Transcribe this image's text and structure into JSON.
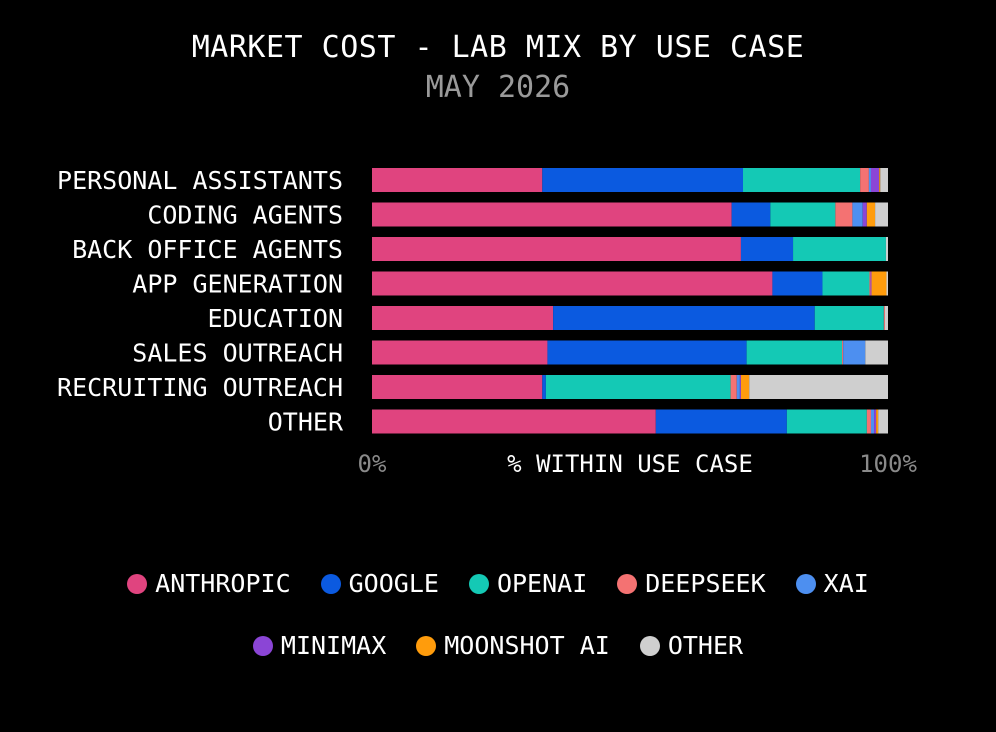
{
  "chart_data": {
    "type": "bar",
    "stacked": true,
    "orientation": "horizontal",
    "title": "MARKET COST - LAB MIX BY USE CASE",
    "subtitle": "MAY 2026",
    "xlabel": "% WITHIN USE CASE",
    "x_ticks": [
      "0%",
      "100%"
    ],
    "xlim": [
      0,
      100
    ],
    "legend_position": "bottom",
    "categories": [
      "PERSONAL ASSISTANTS",
      "CODING AGENTS",
      "BACK OFFICE AGENTS",
      "APP GENERATION",
      "EDUCATION",
      "SALES OUTREACH",
      "RECRUITING OUTREACH",
      "OTHER"
    ],
    "series": [
      {
        "name": "ANTHROPIC",
        "color": "#e0447f",
        "values": [
          33.0,
          69.7,
          71.5,
          77.6,
          35.1,
          34.0,
          33.0,
          55.0
        ]
      },
      {
        "name": "GOOGLE",
        "color": "#0b5ae0",
        "values": [
          38.9,
          7.5,
          10.1,
          9.7,
          50.7,
          38.6,
          0.7,
          25.4
        ]
      },
      {
        "name": "OPENAI",
        "color": "#14c9b5",
        "values": [
          22.7,
          12.6,
          18.0,
          9.1,
          13.4,
          18.5,
          35.8,
          15.5
        ]
      },
      {
        "name": "DEEPSEEK",
        "color": "#f47272",
        "values": [
          1.7,
          3.3,
          0.0,
          0.2,
          0.2,
          0.2,
          1.2,
          0.8
        ]
      },
      {
        "name": "XAI",
        "color": "#4d8ff0",
        "values": [
          0.4,
          2.0,
          0.0,
          0.0,
          0.0,
          4.3,
          0.6,
          0.6
        ]
      },
      {
        "name": "MINIMAX",
        "color": "#8b45d6",
        "values": [
          1.6,
          0.8,
          0.0,
          0.2,
          0.0,
          0.0,
          0.2,
          0.4
        ]
      },
      {
        "name": "MOONSHOT AI",
        "color": "#ff9c0c",
        "values": [
          0.2,
          1.6,
          0.0,
          2.9,
          0.0,
          0.0,
          1.6,
          0.4
        ]
      },
      {
        "name": "OTHER",
        "color": "#cfcfcf",
        "values": [
          1.5,
          2.5,
          0.4,
          0.3,
          0.6,
          4.4,
          26.9,
          1.9
        ]
      }
    ]
  },
  "legend": {
    "row1": [
      {
        "label": "ANTHROPIC",
        "color": "#e0447f"
      },
      {
        "label": "GOOGLE",
        "color": "#0b5ae0"
      },
      {
        "label": "OPENAI",
        "color": "#14c9b5"
      },
      {
        "label": "DEEPSEEK",
        "color": "#f47272"
      },
      {
        "label": "XAI",
        "color": "#4d8ff0"
      }
    ],
    "row2": [
      {
        "label": "MINIMAX",
        "color": "#8b45d6"
      },
      {
        "label": "MOONSHOT AI",
        "color": "#ff9c0c"
      },
      {
        "label": "OTHER",
        "color": "#cfcfcf"
      }
    ]
  }
}
